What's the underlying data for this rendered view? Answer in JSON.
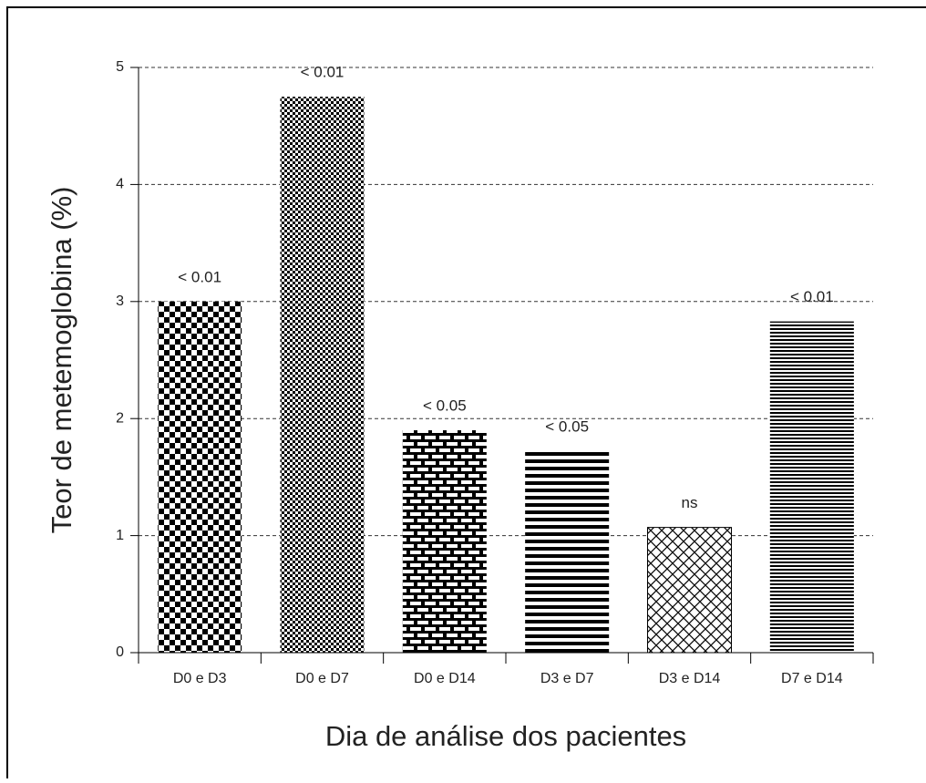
{
  "chart_data": {
    "type": "bar",
    "xlabel": "Dia de análise dos pacientes",
    "ylabel": "Teor de metemoglobina (%)",
    "categories": [
      "D0 e D3",
      "D0 e D7",
      "D0 e D14",
      "D3 e D7",
      "D3 e D14",
      "D7 e D14"
    ],
    "values": [
      3.0,
      4.75,
      1.9,
      1.72,
      1.07,
      2.83
    ],
    "annotations": [
      "< 0.01",
      "< 0.01",
      "< 0.05",
      "< 0.05",
      "ns",
      "< 0.01"
    ],
    "color": "#000000",
    "ylim": [
      0,
      5
    ],
    "yticks": [
      0,
      1,
      2,
      3,
      4,
      5
    ],
    "grid": true
  }
}
